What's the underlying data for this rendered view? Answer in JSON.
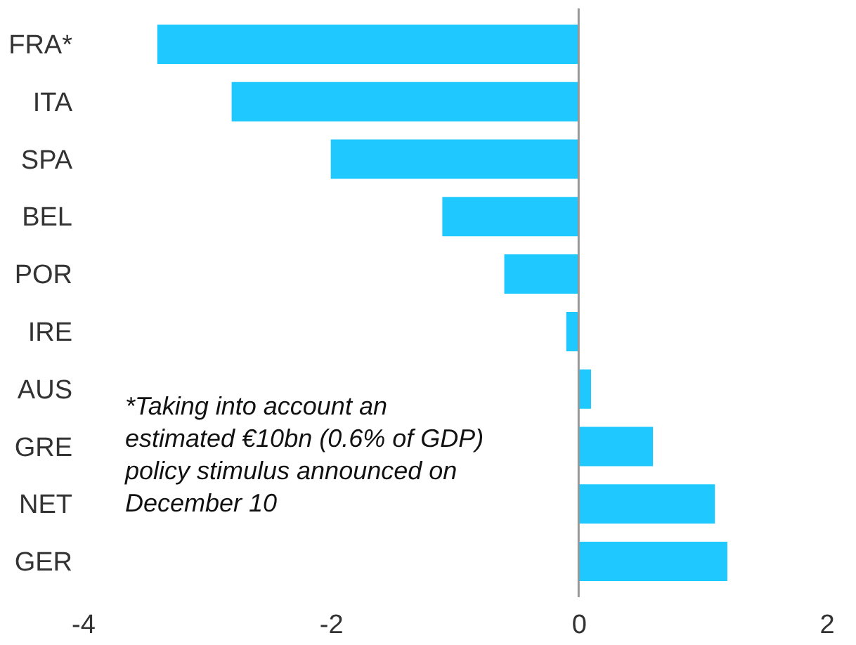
{
  "chart_data": {
    "type": "bar",
    "orientation": "horizontal",
    "categories": [
      "FRA*",
      "ITA",
      "SPA",
      "BEL",
      "POR",
      "IRE",
      "AUS",
      "GRE",
      "NET",
      "GER"
    ],
    "values": [
      -3.4,
      -2.8,
      -2.0,
      -1.1,
      -0.6,
      -0.1,
      0.1,
      0.6,
      1.1,
      1.2
    ],
    "color": "#1fc8fe",
    "xlim": [
      -4,
      2
    ],
    "xticks": [
      -4,
      -2,
      0,
      2
    ],
    "grid": false,
    "ref_lines": [
      {
        "axis": "x",
        "value": 0,
        "color": "#999999"
      }
    ],
    "annotations": [
      "*Taking into account an\nestimated €10bn (0.6% of GDP)\npolicy stimulus announced on\nDecember  10"
    ]
  }
}
